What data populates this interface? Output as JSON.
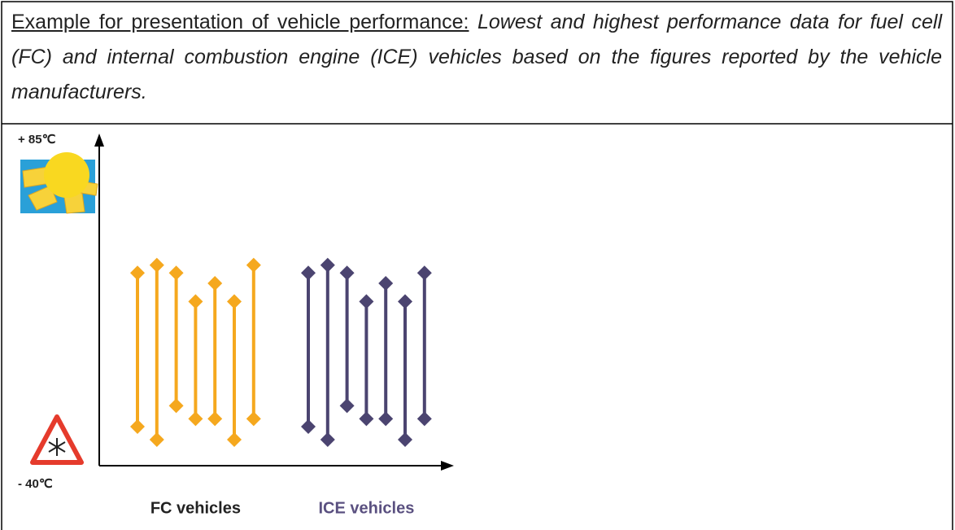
{
  "caption_lead": "Example for presentation of vehicle performance:",
  "caption_text": "Lowest and highest performance data for fuel cell (FC) and internal combustion engine (ICE) vehicles based on the figures reported by the vehicle manufacturers.",
  "chart_data": {
    "type": "range",
    "ylim": [
      -40,
      85
    ],
    "yticks": [
      {
        "value": 85,
        "label": "+ 85℃"
      },
      {
        "value": -40,
        "label": "- 40℃"
      }
    ],
    "series": [
      {
        "name": "FC vehicles",
        "color": "#f5a81e",
        "label_color": "#222222",
        "high": [
          34,
          37,
          34,
          23,
          30,
          23,
          37
        ],
        "low": [
          -25,
          -30,
          -17,
          -22,
          -22,
          -30,
          -22
        ]
      },
      {
        "name": "ICE vehicles",
        "color": "#4b4470",
        "label_color": "#5a5080",
        "high": [
          34,
          37,
          34,
          23,
          30,
          23,
          34
        ],
        "low": [
          -25,
          -30,
          -17,
          -22,
          -22,
          -30,
          -22
        ]
      }
    ]
  }
}
